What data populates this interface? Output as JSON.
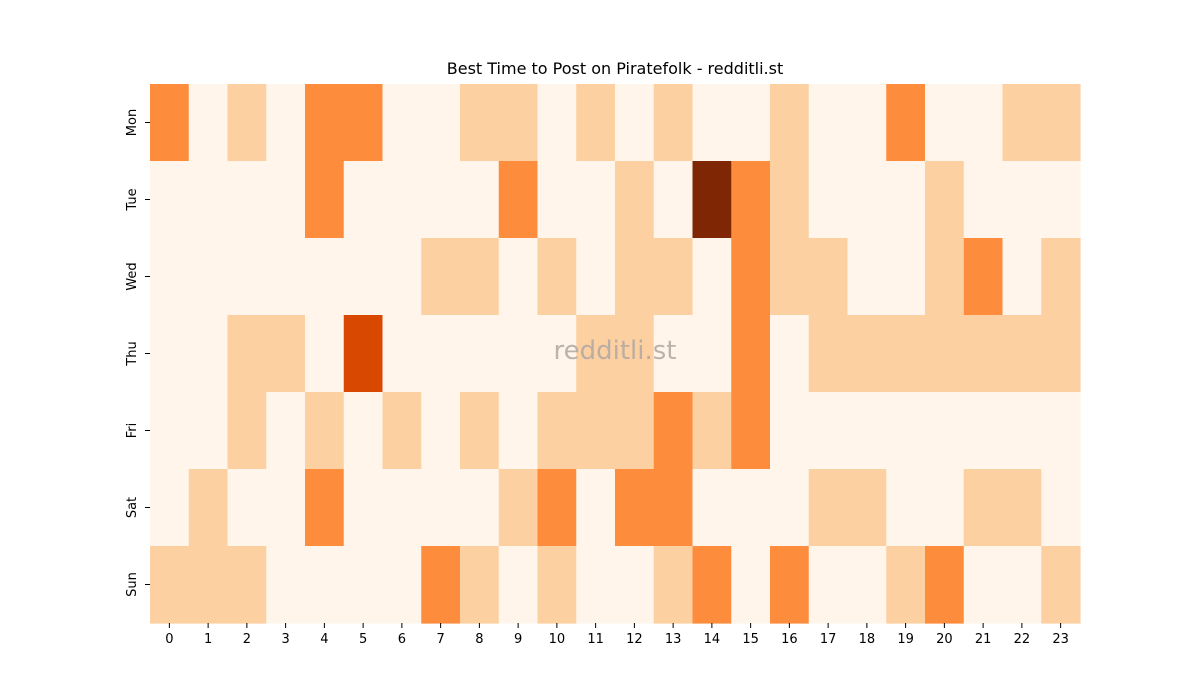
{
  "chart_data": {
    "type": "heatmap",
    "title": "Best Time to Post on Piratefolk - redditli.st",
    "watermark": "redditli.st",
    "x_categories": [
      "0",
      "1",
      "2",
      "3",
      "4",
      "5",
      "6",
      "7",
      "8",
      "9",
      "10",
      "11",
      "12",
      "13",
      "14",
      "15",
      "16",
      "17",
      "18",
      "19",
      "20",
      "21",
      "22",
      "23"
    ],
    "y_categories": [
      "Mon",
      "Tue",
      "Wed",
      "Thu",
      "Fri",
      "Sat",
      "Sun"
    ],
    "color_scale": [
      "#fff5eb",
      "#fdd0a2",
      "#fd8d3c",
      "#d94801",
      "#7f2704"
    ],
    "values": [
      [
        2,
        0,
        1,
        0,
        2,
        2,
        0,
        0,
        1,
        1,
        0,
        1,
        0,
        1,
        0,
        0,
        1,
        0,
        0,
        2,
        0,
        0,
        1,
        1
      ],
      [
        0,
        0,
        0,
        0,
        2,
        0,
        0,
        0,
        0,
        2,
        0,
        0,
        1,
        0,
        4,
        2,
        1,
        0,
        0,
        0,
        1,
        0,
        0,
        0
      ],
      [
        0,
        0,
        0,
        0,
        0,
        0,
        0,
        1,
        1,
        0,
        1,
        0,
        1,
        1,
        0,
        2,
        1,
        1,
        0,
        0,
        1,
        2,
        0,
        1
      ],
      [
        0,
        0,
        1,
        1,
        0,
        3,
        0,
        0,
        0,
        0,
        0,
        1,
        1,
        0,
        0,
        2,
        0,
        1,
        1,
        1,
        1,
        1,
        1,
        1
      ],
      [
        0,
        0,
        1,
        0,
        1,
        0,
        1,
        0,
        1,
        0,
        1,
        1,
        1,
        2,
        1,
        2,
        0,
        0,
        0,
        0,
        0,
        0,
        0,
        0
      ],
      [
        0,
        1,
        0,
        0,
        2,
        0,
        0,
        0,
        0,
        1,
        2,
        0,
        2,
        2,
        0,
        0,
        0,
        1,
        1,
        0,
        0,
        1,
        1,
        0
      ],
      [
        1,
        1,
        1,
        0,
        0,
        0,
        0,
        2,
        1,
        0,
        1,
        0,
        0,
        1,
        2,
        0,
        2,
        0,
        0,
        1,
        2,
        0,
        0,
        1
      ]
    ]
  }
}
